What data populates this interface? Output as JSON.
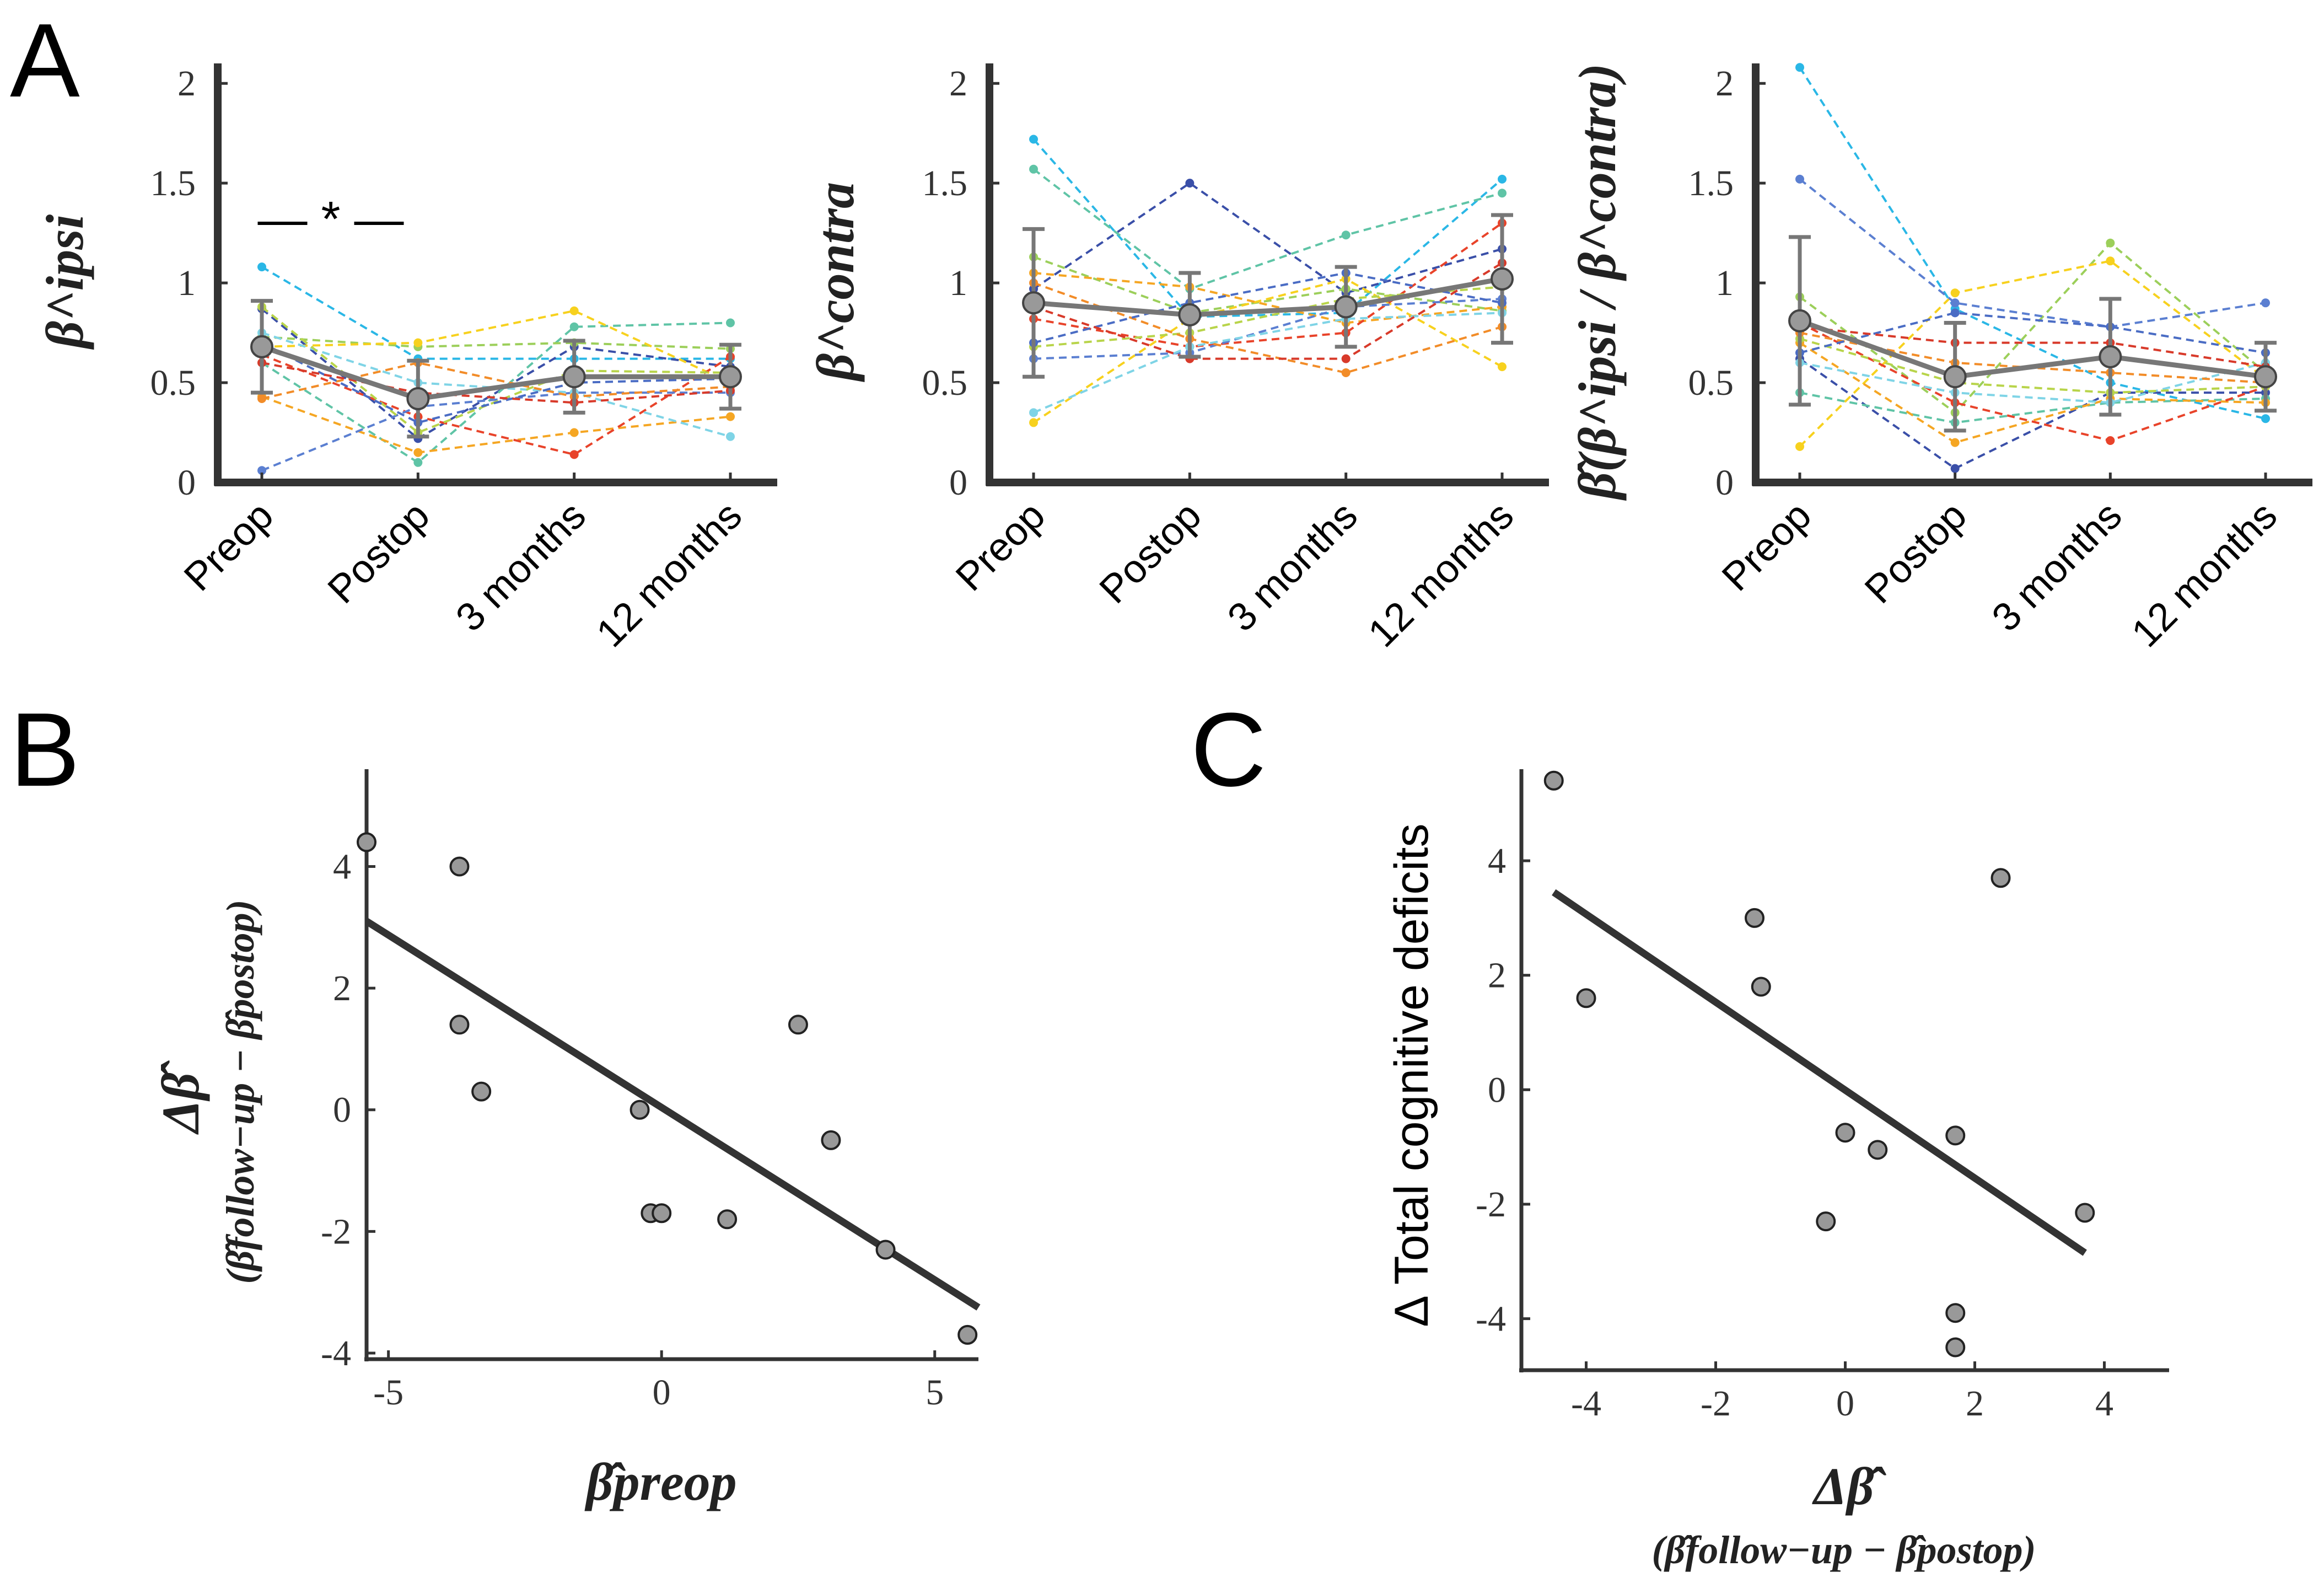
{
  "panels": {
    "a": "A",
    "b": "B",
    "c": "C"
  },
  "significance": "— * —",
  "colors": {
    "axis": "#333333",
    "mean_line": "#777777",
    "marker_fill": "#999999",
    "fit_line": "#333333",
    "subject_palette": [
      "#2ab7e6",
      "#3a4fa8",
      "#5fc4a6",
      "#9ccf5a",
      "#f7d11e",
      "#f5a623",
      "#e8432a",
      "#5b7fd1",
      "#7fd4e6",
      "#b8d44a",
      "#f28c28",
      "#4a6cc4",
      "#d83a2a"
    ]
  },
  "chart_data": [
    {
      "id": "A1",
      "type": "line",
      "ylabel": "β^ipsi",
      "categories": [
        "Preop",
        "Postop",
        "3 months",
        "12 months"
      ],
      "ylim": [
        0,
        2.1
      ],
      "yticks": [
        0,
        0.5,
        1,
        1.5,
        2
      ],
      "mean": {
        "values": [
          0.68,
          0.42,
          0.53,
          0.53
        ],
        "err": [
          0.23,
          0.19,
          0.18,
          0.16
        ]
      },
      "subjects": [
        [
          1.08,
          0.62,
          0.62,
          0.62
        ],
        [
          0.87,
          0.22,
          0.68,
          0.58
        ],
        [
          0.6,
          0.1,
          0.78,
          0.8
        ],
        [
          0.73,
          0.68,
          0.7,
          0.67
        ],
        [
          0.68,
          0.7,
          0.86,
          0.5
        ],
        [
          0.43,
          0.15,
          0.25,
          0.33
        ],
        [
          0.64,
          0.33,
          0.14,
          0.63
        ],
        [
          0.06,
          0.38,
          0.45,
          0.45
        ],
        [
          0.75,
          0.5,
          0.45,
          0.23
        ],
        [
          0.88,
          0.25,
          0.56,
          0.55
        ],
        [
          0.42,
          0.6,
          0.43,
          0.48
        ],
        [
          0.7,
          0.3,
          0.5,
          0.52
        ],
        [
          0.6,
          0.45,
          0.4,
          0.46
        ]
      ]
    },
    {
      "id": "A2",
      "type": "line",
      "ylabel": "β^contra",
      "categories": [
        "Preop",
        "Postop",
        "3 months",
        "12 months"
      ],
      "ylim": [
        0,
        2.1
      ],
      "yticks": [
        0,
        0.5,
        1,
        1.5,
        2
      ],
      "mean": {
        "values": [
          0.9,
          0.84,
          0.88,
          1.02
        ],
        "err": [
          0.37,
          0.21,
          0.2,
          0.32
        ]
      },
      "subjects": [
        [
          1.72,
          0.83,
          0.85,
          1.52
        ],
        [
          0.97,
          1.5,
          0.95,
          1.17
        ],
        [
          1.57,
          0.97,
          1.24,
          1.45
        ],
        [
          1.13,
          0.85,
          0.97,
          0.86
        ],
        [
          0.3,
          0.82,
          1.02,
          0.58
        ],
        [
          1.05,
          0.98,
          0.8,
          0.88
        ],
        [
          0.82,
          0.68,
          0.75,
          1.3
        ],
        [
          0.62,
          0.65,
          0.88,
          0.92
        ],
        [
          0.35,
          0.68,
          0.82,
          0.85
        ],
        [
          0.68,
          0.75,
          0.92,
          0.98
        ],
        [
          1.0,
          0.72,
          0.55,
          0.78
        ],
        [
          0.7,
          0.9,
          1.05,
          0.9
        ],
        [
          0.88,
          0.62,
          0.62,
          1.1
        ]
      ]
    },
    {
      "id": "A3",
      "type": "line",
      "ylabel": "β̂(β^ipsi / β^contra)",
      "categories": [
        "Preop",
        "Postop",
        "3 months",
        "12 months"
      ],
      "ylim": [
        0,
        2.1
      ],
      "yticks": [
        0,
        0.5,
        1,
        1.5,
        2
      ],
      "mean": {
        "values": [
          0.81,
          0.53,
          0.63,
          0.53
        ],
        "err": [
          0.42,
          0.27,
          0.29,
          0.17
        ]
      },
      "subjects": [
        [
          2.08,
          0.87,
          0.5,
          0.32
        ],
        [
          0.62,
          0.07,
          0.45,
          0.45
        ],
        [
          0.45,
          0.3,
          0.4,
          0.42
        ],
        [
          0.93,
          0.35,
          1.2,
          0.55
        ],
        [
          0.18,
          0.95,
          1.11,
          0.52
        ],
        [
          0.7,
          0.2,
          0.42,
          0.4
        ],
        [
          0.8,
          0.4,
          0.21,
          0.48
        ],
        [
          1.52,
          0.9,
          0.78,
          0.9
        ],
        [
          0.6,
          0.45,
          0.4,
          0.6
        ],
        [
          0.72,
          0.5,
          0.45,
          0.48
        ],
        [
          0.75,
          0.6,
          0.55,
          0.5
        ],
        [
          0.65,
          0.85,
          0.78,
          0.65
        ],
        [
          0.78,
          0.7,
          0.7,
          0.58
        ]
      ]
    },
    {
      "id": "B",
      "type": "scatter",
      "ylabel": "Δβ̂",
      "ylabel_sub": "(β̂follow−up − β̂postop)",
      "xlabel": "β̂preop",
      "xlim": [
        -5.4,
        5.8
      ],
      "ylim": [
        -4.1,
        5.6
      ],
      "xticks": [
        -5,
        0,
        5
      ],
      "yticks": [
        -4,
        -2,
        0,
        2,
        4
      ],
      "x": [
        -5.4,
        -3.7,
        -3.7,
        -3.3,
        -0.4,
        -0.2,
        0.0,
        1.2,
        2.5,
        3.1,
        4.1,
        5.6
      ],
      "y": [
        4.4,
        4.0,
        1.4,
        0.3,
        0.0,
        -1.7,
        -1.7,
        -1.8,
        1.4,
        -0.5,
        -2.3,
        -3.7
      ],
      "fit": {
        "x": [
          -5.4,
          5.8
        ],
        "y": [
          3.1,
          -3.25
        ]
      }
    },
    {
      "id": "C",
      "type": "scatter",
      "ylabel": "Δ  Total cognitive deficits",
      "xlabel": "Δβ̂",
      "xlabel_sub": "(β̂follow−up − β̂postop)",
      "xlim": [
        -5.0,
        5.0
      ],
      "ylim": [
        -4.9,
        5.6
      ],
      "xticks": [
        -4,
        -2,
        0,
        2,
        4
      ],
      "yticks": [
        -4,
        -2,
        0,
        2,
        4
      ],
      "x": [
        -4.5,
        -4.0,
        -1.4,
        -1.3,
        -0.3,
        0.0,
        0.5,
        1.7,
        1.7,
        1.7,
        2.4,
        3.7
      ],
      "y": [
        5.4,
        1.6,
        3.0,
        1.8,
        -2.3,
        -0.75,
        -1.05,
        -0.8,
        -3.9,
        -4.5,
        3.7,
        -2.15
      ],
      "fit": {
        "x": [
          -4.5,
          3.7
        ],
        "y": [
          3.45,
          -2.85
        ]
      }
    }
  ]
}
